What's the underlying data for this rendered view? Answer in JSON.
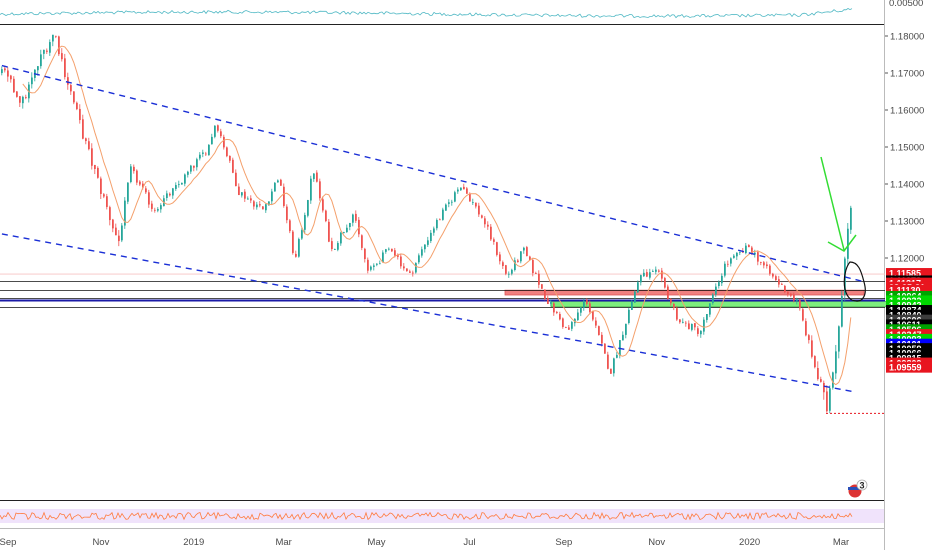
{
  "chart_data": {
    "type": "candlestick",
    "price_range": [
      1.0945,
      1.1845
    ],
    "osc_top_label": "0.00500",
    "y_ticks": [
      {
        "value": 1.18,
        "label": "1.18000"
      },
      {
        "value": 1.17,
        "label": "1.17000"
      },
      {
        "value": 1.16,
        "label": "1.16000"
      },
      {
        "value": 1.15,
        "label": "1.15000"
      },
      {
        "value": 1.14,
        "label": "1.14000"
      },
      {
        "value": 1.13,
        "label": "1.13000"
      },
      {
        "value": 1.12,
        "label": "1.12000"
      }
    ],
    "x_ticks": [
      {
        "date": "2018-09-01",
        "label": "Sep"
      },
      {
        "date": "2018-11-01",
        "label": "Nov"
      },
      {
        "date": "2019-01-01",
        "label": "2019"
      },
      {
        "date": "2019-03-01",
        "label": "Mar"
      },
      {
        "date": "2019-05-01",
        "label": "May"
      },
      {
        "date": "2019-07-01",
        "label": "Jul"
      },
      {
        "date": "2019-09-01",
        "label": "Sep"
      },
      {
        "date": "2019-11-01",
        "label": "Nov"
      },
      {
        "date": "2020-01-01",
        "label": "2020"
      },
      {
        "date": "2020-03-01",
        "label": "Mar"
      }
    ],
    "price_path": [
      [
        "2018-08-28",
        1.17
      ],
      [
        "2018-09-10",
        1.162
      ],
      [
        "2018-09-24",
        1.176
      ],
      [
        "2018-10-01",
        1.181
      ],
      [
        "2018-10-08",
        1.17
      ],
      [
        "2018-10-22",
        1.15
      ],
      [
        "2018-11-12",
        1.124
      ],
      [
        "2018-11-20",
        1.144
      ],
      [
        "2018-12-05",
        1.133
      ],
      [
        "2018-12-20",
        1.139
      ],
      [
        "2019-01-10",
        1.15
      ],
      [
        "2019-01-15",
        1.157
      ],
      [
        "2019-01-30",
        1.138
      ],
      [
        "2019-02-15",
        1.133
      ],
      [
        "2019-02-25",
        1.142
      ],
      [
        "2019-03-08",
        1.119
      ],
      [
        "2019-03-20",
        1.144
      ],
      [
        "2019-04-01",
        1.122
      ],
      [
        "2019-04-15",
        1.132
      ],
      [
        "2019-04-25",
        1.116
      ],
      [
        "2019-05-10",
        1.123
      ],
      [
        "2019-05-22",
        1.115
      ],
      [
        "2019-06-05",
        1.127
      ],
      [
        "2019-06-25",
        1.14
      ],
      [
        "2019-07-10",
        1.13
      ],
      [
        "2019-07-25",
        1.115
      ],
      [
        "2019-08-05",
        1.122
      ],
      [
        "2019-08-20",
        1.109
      ],
      [
        "2019-09-03",
        1.1
      ],
      [
        "2019-09-15",
        1.109
      ],
      [
        "2019-10-01",
        1.089
      ],
      [
        "2019-10-20",
        1.115
      ],
      [
        "2019-11-01",
        1.116
      ],
      [
        "2019-11-15",
        1.103
      ],
      [
        "2019-11-29",
        1.1
      ],
      [
        "2019-12-15",
        1.118
      ],
      [
        "2019-12-31",
        1.123
      ],
      [
        "2020-01-15",
        1.115
      ],
      [
        "2020-02-01",
        1.108
      ],
      [
        "2020-02-20",
        1.079
      ],
      [
        "2020-02-28",
        1.102
      ],
      [
        "2020-03-06",
        1.135
      ],
      [
        "2020-03-09",
        1.129
      ]
    ],
    "channel_upper": [
      [
        "2018-08-28",
        1.172
      ],
      [
        "2020-03-15",
        1.1137
      ]
    ],
    "channel_lower": [
      [
        "2018-08-28",
        1.1265
      ],
      [
        "2020-03-10",
        1.0838
      ]
    ],
    "resistance_zone": [
      1.11,
      1.1113
    ],
    "support_zone": [
      1.1068,
      1.1083
    ],
    "h_lines": [
      1.1137,
      1.1113,
      1.1091,
      1.1067
    ],
    "blue_line": 1.1085,
    "red_dotted_level": 1.078,
    "price_labels": [
      {
        "value": 1.1158,
        "label": "1.11585",
        "bg": "#e8151f",
        "fg": "#ffffff"
      },
      {
        "value": 1.1138,
        "label": "1.11378",
        "bg": "#000000",
        "fg": "#ffffff"
      },
      {
        "value": 1.1132,
        "label": "1.11317",
        "bg": "#e8151f",
        "fg": "#ffffff"
      },
      {
        "value": 1.1121,
        "label": "03:05:21",
        "bg": "#e8151f",
        "fg": "#ffffff"
      },
      {
        "value": 1.1113,
        "label": "1.11130",
        "bg": "#e8151f",
        "fg": "#ffffff"
      },
      {
        "value": 1.1096,
        "label": "1.10964",
        "bg": "#00a300",
        "fg": "#ffffff"
      },
      {
        "value": 1.1084,
        "label": "1.10932",
        "bg": "#00d600",
        "fg": "#ffffff"
      },
      {
        "value": 1.1072,
        "label": "1.10942",
        "bg": "#00d600",
        "fg": "#ffffff"
      },
      {
        "value": 1.1058,
        "label": "1.10874",
        "bg": "#000000",
        "fg": "#ffffff"
      },
      {
        "value": 1.1045,
        "label": "1.10840",
        "bg": "#000000",
        "fg": "#ffffff"
      },
      {
        "value": 1.1032,
        "label": "1.10606",
        "bg": "#3c3c3c",
        "fg": "#ffffff"
      },
      {
        "value": 1.1019,
        "label": "1.10611",
        "bg": "#000000",
        "fg": "#ffffff"
      },
      {
        "value": 1.1006,
        "label": "1.10506",
        "bg": "#00a300",
        "fg": "#ffffff"
      },
      {
        "value": 1.0993,
        "label": "1.10347",
        "bg": "#e8151f",
        "fg": "#ffffff"
      },
      {
        "value": 1.098,
        "label": "1.10093",
        "bg": "#00d600",
        "fg": "#ffffff"
      },
      {
        "value": 1.0967,
        "label": "1.10101",
        "bg": "#0000ff",
        "fg": "#ffffff"
      },
      {
        "value": 1.0955,
        "label": "1.10059",
        "bg": "#000000",
        "fg": "#ffffff"
      },
      {
        "value": 1.0942,
        "label": "1.10066",
        "bg": "#000000",
        "fg": "#ffffff"
      },
      {
        "value": 1.0929,
        "label": "1.09815",
        "bg": "#000000",
        "fg": "#ffffff"
      },
      {
        "value": 1.0916,
        "label": "1.09809",
        "bg": "#e8151f",
        "fg": "#ffffff"
      },
      {
        "value": 1.0905,
        "label": "1.09559",
        "bg": "#e8151f",
        "fg": "#ffffff"
      }
    ],
    "events_badge": "3",
    "colors": {
      "bull": "#26a69a",
      "bear": "#ef5350",
      "ma": "#f4a06c",
      "channel": "#1a2fd6",
      "resistance": "#f08080",
      "support": "#7dee7d",
      "arrow": "#33dd33",
      "osc_line": "#4fb8c4",
      "rsi_line": "#ff7a3d"
    }
  }
}
